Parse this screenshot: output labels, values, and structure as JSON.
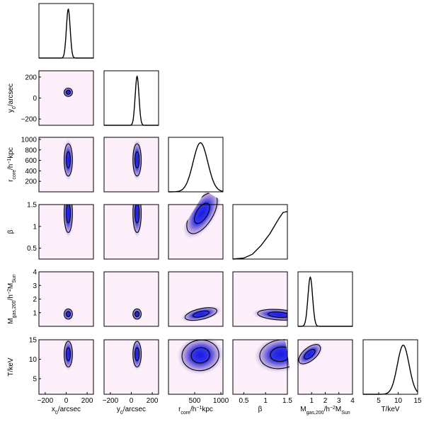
{
  "chart_data": {
    "type": "corner",
    "parameters": [
      {
        "key": "x0",
        "label": "x₀/arcsec",
        "ticks": [
          -200,
          0,
          200
        ],
        "range": [
          -260,
          260
        ]
      },
      {
        "key": "y0",
        "label": "y₀/arcsec",
        "ticks": [
          -200,
          0,
          200
        ],
        "range": [
          -260,
          260
        ]
      },
      {
        "key": "rcore",
        "label": "r_core/h⁻¹kpc",
        "ticks": [
          500,
          1000
        ],
        "range": [
          0,
          1040
        ],
        "yticks": [
          200,
          400,
          600,
          800,
          1000
        ]
      },
      {
        "key": "beta",
        "label": "β",
        "ticks": [
          0.5,
          1,
          1.5
        ],
        "range": [
          0.25,
          1.5
        ]
      },
      {
        "key": "mgas",
        "label": "M_gas,200/h⁻²M_Sun",
        "ticks": [
          1,
          2,
          3,
          4
        ],
        "range": [
          0,
          4
        ]
      },
      {
        "key": "T",
        "label": "T/keV",
        "ticks": [
          5,
          10,
          15
        ],
        "range": [
          1,
          15
        ]
      }
    ],
    "axis_text": {
      "x": [
        "x",
        "0",
        "/arcsec"
      ],
      "y": [
        "y",
        "0",
        "/arcsec"
      ],
      "rcore": [
        "r",
        "core",
        "/h",
        "−1",
        "kpc"
      ],
      "beta": "β",
      "mgas": [
        "M",
        "gas,200",
        "/h",
        "−2",
        "M",
        "Sun"
      ],
      "T": "T/keV"
    },
    "marginals": [
      {
        "param": "x0",
        "shape": "gaussian",
        "mean": 20,
        "sigma": 18
      },
      {
        "param": "y0",
        "shape": "gaussian",
        "mean": 55,
        "sigma": 18
      },
      {
        "param": "rcore",
        "shape": "gaussian",
        "mean": 610,
        "sigma": 140
      },
      {
        "param": "beta",
        "shape": "rising",
        "x": [
          0.25,
          0.5,
          0.7,
          0.9,
          1.1,
          1.3,
          1.4,
          1.45,
          1.5
        ],
        "y": [
          0.0,
          0.02,
          0.1,
          0.28,
          0.52,
          0.82,
          0.95,
          0.96,
          0.97
        ]
      },
      {
        "param": "mgas",
        "shape": "gaussian",
        "mean": 0.9,
        "sigma": 0.17
      },
      {
        "param": "T",
        "shape": "gaussian",
        "mean": 11.3,
        "sigma": 1.5
      }
    ],
    "joint": [
      {
        "x": "x0",
        "y": "y0",
        "cx": 20,
        "cy": 55,
        "sx": 18,
        "sy": 18,
        "rho": 0
      },
      {
        "x": "x0",
        "y": "rcore",
        "cx": 20,
        "cy": 610,
        "sx": 18,
        "sy": 140,
        "rho": 0
      },
      {
        "x": "y0",
        "y": "rcore",
        "cx": 55,
        "cy": 610,
        "sx": 18,
        "sy": 140,
        "rho": 0
      },
      {
        "x": "x0",
        "y": "beta",
        "cx": 20,
        "cy": 1.3,
        "sx": 18,
        "sy": 0.2,
        "rho": 0
      },
      {
        "x": "y0",
        "y": "beta",
        "cx": 55,
        "cy": 1.3,
        "sx": 18,
        "sy": 0.2,
        "rho": 0
      },
      {
        "x": "rcore",
        "y": "beta",
        "cx": 640,
        "cy": 1.3,
        "sx": 140,
        "sy": 0.2,
        "rho": 0.85
      },
      {
        "x": "x0",
        "y": "mgas",
        "cx": 20,
        "cy": 0.9,
        "sx": 18,
        "sy": 0.17,
        "rho": 0
      },
      {
        "x": "y0",
        "y": "mgas",
        "cx": 55,
        "cy": 0.9,
        "sx": 18,
        "sy": 0.17,
        "rho": 0
      },
      {
        "x": "rcore",
        "y": "mgas",
        "cx": 620,
        "cy": 0.9,
        "sx": 140,
        "sy": 0.17,
        "rho": 0.45
      },
      {
        "x": "beta",
        "y": "mgas",
        "cx": 1.3,
        "cy": 0.85,
        "sx": 0.22,
        "sy": 0.15,
        "rho": -0.2
      },
      {
        "x": "mgas",
        "y": "T",
        "cx": 0.85,
        "cy": 11.3,
        "sx": 0.17,
        "sy": 1.5,
        "rho": -0.3
      },
      {
        "x": "x0",
        "y": "T",
        "cx": 20,
        "cy": 11.3,
        "sx": 18,
        "sy": 1.5,
        "rho": 0
      },
      {
        "x": "y0",
        "y": "T",
        "cx": 55,
        "cy": 11.3,
        "sx": 18,
        "sy": 1.5,
        "rho": 0
      },
      {
        "x": "rcore",
        "y": "T",
        "cx": 610,
        "cy": 11.0,
        "sx": 160,
        "sy": 1.7,
        "rho": 0.1
      },
      {
        "x": "beta",
        "y": "T",
        "cx": 1.35,
        "cy": 11.3,
        "sx": 0.22,
        "sy": 1.6,
        "rho": 0.15
      }
    ],
    "contour_levels_sigma": [
      1,
      2
    ],
    "colors": {
      "core": "#1a1ae6",
      "mid": "#a08ad8",
      "background": "#fdf0fa",
      "line": "#000000"
    },
    "grid": false,
    "legend": "none"
  }
}
